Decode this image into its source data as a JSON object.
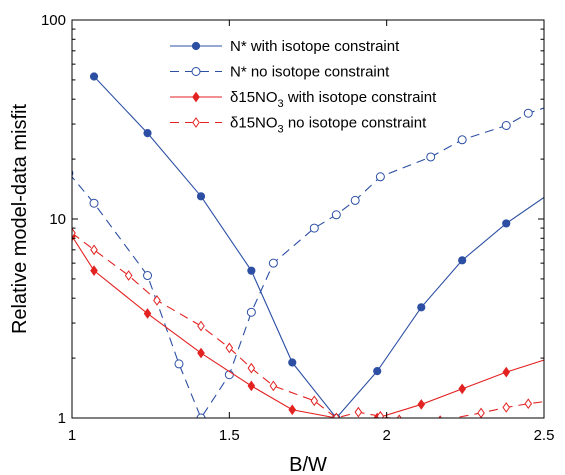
{
  "chart_data": {
    "type": "line",
    "title": "",
    "xlabel": "B/W",
    "ylabel": "Relative model-data misfit",
    "xlim": [
      1,
      2.5
    ],
    "ylim": [
      1,
      100
    ],
    "yscale": "log",
    "grid": false,
    "legend_position": "top-right",
    "x_ticks": [
      1,
      1.5,
      2,
      2.5
    ],
    "x_tick_labels": [
      "1",
      "1.5",
      "2",
      "2.5"
    ],
    "y_ticks": [
      1,
      10,
      100
    ],
    "y_tick_labels": [
      "1",
      "10",
      "100"
    ],
    "series": [
      {
        "name": "N* with isotope constraint",
        "color": "#2c4fa3",
        "line": "solid",
        "marker": "filled-circle",
        "x": [
          1.07,
          1.24,
          1.41,
          1.57,
          1.7,
          1.84,
          1.97,
          2.11,
          2.24,
          2.38,
          2.52
        ],
        "y": [
          52,
          27,
          13,
          5.5,
          1.9,
          1.0,
          1.72,
          3.6,
          6.2,
          9.5,
          13.5
        ]
      },
      {
        "name": "N* no isotope constraint",
        "color": "#2c4fa3",
        "line": "dashed",
        "marker": "open-circle",
        "x": [
          0.99,
          1.07,
          1.24,
          1.34,
          1.41,
          1.5,
          1.57,
          1.64,
          1.77,
          1.84,
          1.9,
          1.98,
          2.14,
          2.24,
          2.38,
          2.45,
          2.52
        ],
        "y": [
          17,
          12,
          5.2,
          1.87,
          1.0,
          1.65,
          3.4,
          6.0,
          9.0,
          10.5,
          12.4,
          16.3,
          20.5,
          25,
          29.5,
          34,
          37
        ]
      },
      {
        "name": "δ15NO3 with isotope constraint",
        "color": "#e32222",
        "line": "solid",
        "marker": "filled-diamond",
        "x": [
          1.0,
          1.07,
          1.24,
          1.41,
          1.57,
          1.7,
          1.84,
          1.97,
          2.11,
          2.24,
          2.38,
          2.52
        ],
        "y": [
          8.2,
          5.5,
          3.35,
          2.12,
          1.45,
          1.1,
          1.0,
          1.0,
          1.17,
          1.4,
          1.7,
          2.0
        ]
      },
      {
        "name": "δ15NO3 no isotope constraint",
        "color": "#e32222",
        "line": "dashed",
        "marker": "open-diamond",
        "x": [
          1.0,
          1.07,
          1.18,
          1.27,
          1.41,
          1.5,
          1.57,
          1.64,
          1.77,
          1.84,
          1.91,
          1.98,
          2.04,
          2.17,
          2.3,
          2.38,
          2.45,
          2.52
        ],
        "y": [
          8.5,
          7.0,
          5.2,
          3.9,
          2.9,
          2.25,
          1.78,
          1.45,
          1.22,
          1.0,
          1.07,
          1.02,
          0.98,
          0.97,
          1.06,
          1.13,
          1.18,
          1.22
        ]
      }
    ]
  }
}
